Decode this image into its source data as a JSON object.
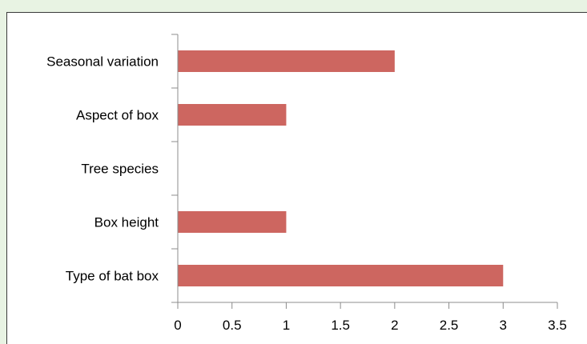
{
  "chart_data": {
    "type": "bar",
    "orientation": "horizontal",
    "categories": [
      "Seasonal variation",
      "Aspect of box",
      "Tree species",
      "Box height",
      "Type of bat box"
    ],
    "values": [
      2,
      1,
      0,
      1,
      3
    ],
    "title": "",
    "xlabel": "",
    "ylabel": "",
    "xlim": [
      0,
      3.5
    ],
    "x_ticks": [
      "0",
      "0.5",
      "1",
      "1.5",
      "2",
      "2.5",
      "3",
      "3.5"
    ],
    "grid": false,
    "legend": "none",
    "bar_color": "#cd6660",
    "axis_color": "#8c8c8c"
  }
}
